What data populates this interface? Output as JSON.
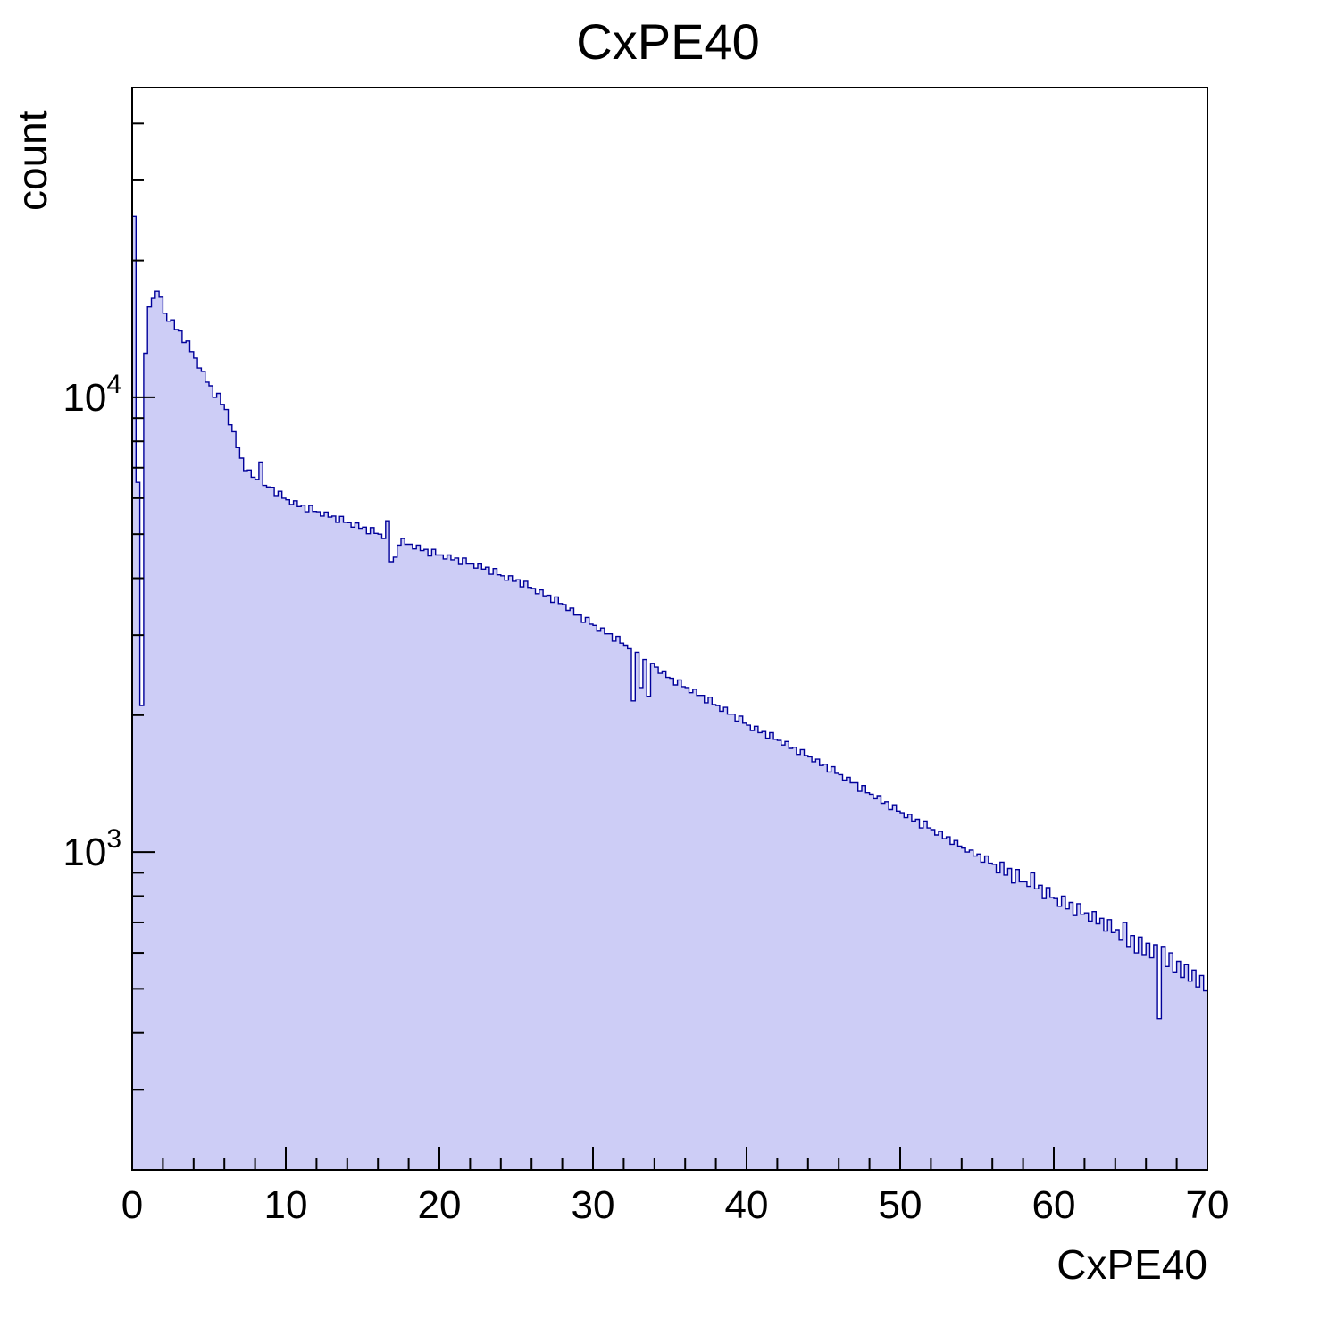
{
  "title": "CxPE40",
  "axes": {
    "x_label": "CxPE40",
    "y_label": "count",
    "x_ticks": [
      0,
      10,
      20,
      30,
      40,
      50,
      60,
      70
    ],
    "y_ticks": [
      {
        "base": "10",
        "exp": "4",
        "value": 10000
      },
      {
        "base": "10",
        "exp": "3",
        "value": 1000
      }
    ]
  },
  "style": {
    "fill_color": "#cdcdf6",
    "line_color": "#00009a",
    "frame_color": "#000000"
  },
  "chart_data": {
    "type": "bar",
    "subtype": "filled-step-histogram",
    "title": "CxPE40",
    "xlabel": "CxPE40",
    "ylabel": "count",
    "y_scale": "log",
    "xlim": [
      0,
      70
    ],
    "ylim": [
      200,
      48000
    ],
    "grid": false,
    "legend": false,
    "bin_start": 0,
    "bin_width": 0.25,
    "counts": [
      25000,
      6500,
      2100,
      12500,
      15800,
      16500,
      17100,
      16600,
      15300,
      14700,
      14800,
      14100,
      14000,
      13200,
      13300,
      12600,
      12200,
      11600,
      11400,
      10800,
      10600,
      10000,
      10200,
      9650,
      9400,
      8700,
      8400,
      7750,
      7350,
      6900,
      6920,
      6670,
      6600,
      7200,
      6400,
      6350,
      6340,
      6080,
      6210,
      6000,
      5950,
      5810,
      5920,
      5750,
      5790,
      5600,
      5780,
      5610,
      5600,
      5480,
      5590,
      5450,
      5480,
      5310,
      5470,
      5310,
      5300,
      5180,
      5290,
      5150,
      5180,
      5010,
      5170,
      5020,
      5000,
      4890,
      5350,
      4350,
      4450,
      4730,
      4890,
      4750,
      4750,
      4640,
      4730,
      4600,
      4630,
      4480,
      4630,
      4500,
      4500,
      4410,
      4500,
      4390,
      4430,
      4290,
      4430,
      4300,
      4300,
      4210,
      4300,
      4190,
      4230,
      4080,
      4200,
      4070,
      4050,
      3960,
      4050,
      3940,
      3970,
      3830,
      3940,
      3820,
      3800,
      3700,
      3770,
      3660,
      3670,
      3540,
      3640,
      3520,
      3500,
      3400,
      3440,
      3320,
      3320,
      3200,
      3280,
      3170,
      3150,
      3060,
      3110,
      3020,
      3020,
      2910,
      2980,
      2880,
      2850,
      2800,
      2150,
      2750,
      2300,
      2650,
      2200,
      2600,
      2550,
      2470,
      2500,
      2420,
      2410,
      2330,
      2390,
      2310,
      2300,
      2240,
      2280,
      2210,
      2210,
      2130,
      2190,
      2110,
      2100,
      2040,
      2080,
      2010,
      2010,
      1940,
      1990,
      1920,
      1900,
      1850,
      1890,
      1830,
      1840,
      1780,
      1830,
      1770,
      1760,
      1720,
      1750,
      1690,
      1700,
      1640,
      1680,
      1630,
      1620,
      1580,
      1600,
      1550,
      1560,
      1500,
      1540,
      1490,
      1480,
      1440,
      1460,
      1420,
      1420,
      1360,
      1400,
      1350,
      1340,
      1310,
      1330,
      1280,
      1290,
      1240,
      1270,
      1230,
      1220,
      1190,
      1210,
      1170,
      1180,
      1130,
      1170,
      1130,
      1120,
      1090,
      1110,
      1070,
      1080,
      1040,
      1060,
      1030,
      1020,
      1000,
      1010,
      980,
      990,
      950,
      980,
      945,
      940,
      900,
      950,
      890,
      920,
      855,
      915,
      860,
      860,
      840,
      900,
      830,
      845,
      790,
      835,
      795,
      790,
      760,
      800,
      750,
      775,
      725,
      770,
      730,
      735,
      705,
      740,
      695,
      715,
      670,
      710,
      665,
      675,
      640,
      700,
      620,
      655,
      600,
      650,
      595,
      630,
      585,
      625,
      430,
      620,
      560,
      600,
      545,
      575,
      530,
      565,
      520,
      550,
      505,
      535,
      495
    ]
  }
}
